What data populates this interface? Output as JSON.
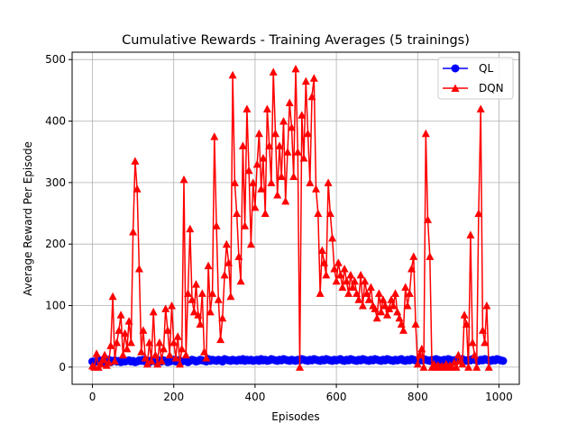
{
  "chart_data": {
    "type": "line",
    "title": "Cumulative Rewards - Training Averages (5 trainings)",
    "xlabel": "Episodes",
    "ylabel": "Average Reward Per Episode",
    "xlim": [
      -50,
      1050
    ],
    "ylim": [
      -28,
      512
    ],
    "x_ticks": [
      0,
      200,
      400,
      600,
      800,
      1000
    ],
    "y_ticks": [
      0,
      100,
      200,
      300,
      400,
      500
    ],
    "grid": true,
    "legend_position": "top-right",
    "series": [
      {
        "name": "QL",
        "color": "#0000ff",
        "marker": "circle",
        "x_start": 0,
        "x_step": 5,
        "values": [
          9,
          8,
          10,
          9,
          11,
          8,
          10,
          9,
          12,
          8,
          10,
          11,
          9,
          10,
          8,
          12,
          9,
          10,
          11,
          9,
          10,
          8,
          9,
          11,
          10,
          12,
          9,
          10,
          8,
          11,
          10,
          9,
          12,
          10,
          9,
          11,
          10,
          8,
          9,
          10,
          12,
          9,
          11,
          10,
          9,
          10,
          11,
          8,
          10,
          12,
          11,
          9,
          10,
          12,
          11,
          10,
          9,
          13,
          10,
          12,
          11,
          10,
          12,
          11,
          9,
          13,
          12,
          11,
          10,
          12,
          11,
          10,
          12,
          11,
          13,
          10,
          12,
          11,
          12,
          10,
          11,
          12,
          10,
          13,
          11,
          12,
          10,
          11,
          13,
          12,
          11,
          10,
          12,
          11,
          13,
          12,
          11,
          10,
          12,
          11,
          10,
          12,
          11,
          13,
          12,
          11,
          10,
          12,
          11,
          13,
          12,
          11,
          10,
          12,
          11,
          13,
          12,
          11,
          10,
          12,
          11,
          12,
          13,
          11,
          10,
          12,
          11,
          13,
          12,
          11,
          10,
          12,
          11,
          13,
          12,
          11,
          10,
          12,
          11,
          13,
          12,
          11,
          10,
          12,
          11,
          13,
          12,
          11,
          10,
          12,
          11,
          12,
          13,
          11,
          10,
          12,
          11,
          13,
          12,
          11,
          10,
          12,
          11,
          13,
          12,
          11,
          10,
          12,
          11,
          13,
          12,
          11,
          10,
          12,
          11,
          13,
          12,
          11,
          10,
          12,
          11,
          12,
          13,
          11,
          10,
          12,
          11,
          13,
          12,
          11,
          10,
          12,
          11,
          13,
          12,
          11,
          10,
          12,
          11,
          13,
          12,
          11,
          10
        ]
      },
      {
        "name": "DQN",
        "color": "#ff0000",
        "marker": "triangle-up",
        "x_start": 0,
        "x_step": 5,
        "values": [
          2,
          0,
          22,
          0,
          5,
          12,
          20,
          3,
          8,
          35,
          115,
          10,
          40,
          60,
          85,
          20,
          55,
          30,
          75,
          40,
          220,
          335,
          290,
          160,
          25,
          60,
          15,
          5,
          40,
          10,
          90,
          20,
          5,
          40,
          10,
          30,
          95,
          60,
          20,
          100,
          40,
          15,
          50,
          5,
          30,
          305,
          20,
          120,
          225,
          110,
          90,
          135,
          85,
          70,
          120,
          25,
          15,
          165,
          90,
          120,
          375,
          230,
          110,
          45,
          80,
          150,
          200,
          170,
          115,
          475,
          300,
          250,
          180,
          140,
          360,
          230,
          420,
          320,
          200,
          300,
          260,
          330,
          380,
          290,
          340,
          250,
          420,
          360,
          300,
          480,
          380,
          280,
          360,
          310,
          400,
          270,
          350,
          430,
          390,
          310,
          485,
          350,
          0,
          410,
          340,
          465,
          380,
          300,
          440,
          470,
          290,
          250,
          120,
          190,
          170,
          150,
          300,
          250,
          210,
          160,
          140,
          170,
          150,
          130,
          160,
          140,
          120,
          150,
          130,
          140,
          120,
          110,
          150,
          100,
          140,
          120,
          110,
          130,
          100,
          95,
          80,
          120,
          90,
          110,
          100,
          85,
          95,
          110,
          100,
          120,
          90,
          80,
          70,
          60,
          130,
          100,
          120,
          160,
          180,
          70,
          5,
          20,
          30,
          0,
          380,
          240,
          180,
          0,
          5,
          0,
          3,
          0,
          2,
          0,
          5,
          0,
          3,
          0,
          8,
          0,
          20,
          10,
          5,
          85,
          70,
          0,
          215,
          40,
          20,
          0,
          250,
          420,
          60,
          40,
          100,
          0
        ]
      }
    ]
  }
}
